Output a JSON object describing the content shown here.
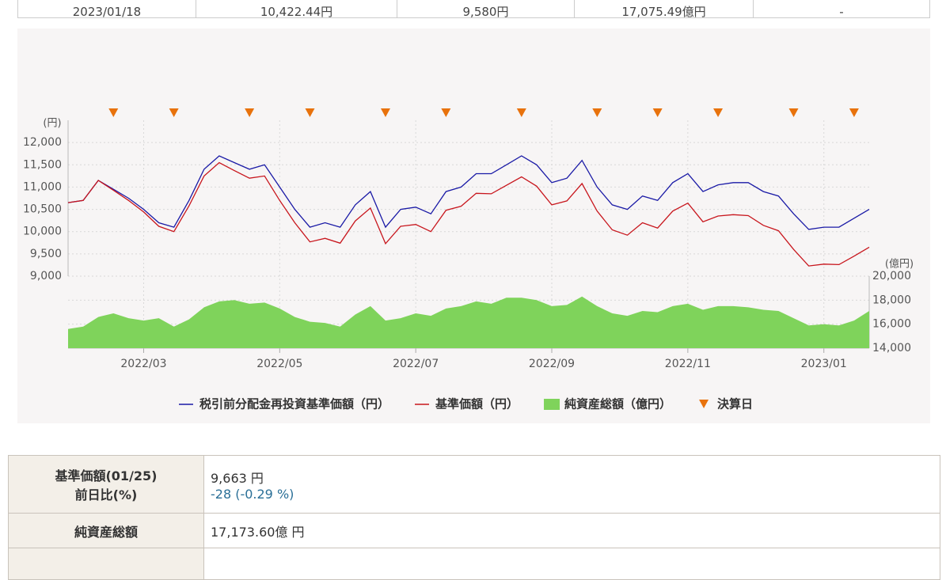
{
  "top_table": {
    "rows": [
      [
        "2023/01/18",
        "10,422.44円",
        "9,580円",
        "17,075.49億円",
        "-"
      ]
    ]
  },
  "chart_data": {
    "type": "line",
    "y_unit": "(円)",
    "y2_unit": "(億円)",
    "categories": [
      null,
      null,
      null,
      null,
      null,
      "2022/03",
      null,
      null,
      null,
      null,
      null,
      null,
      null,
      null,
      "2022/05",
      null,
      null,
      null,
      null,
      null,
      null,
      null,
      null,
      "2022/07",
      null,
      null,
      null,
      null,
      null,
      null,
      null,
      null,
      "2022/09",
      null,
      null,
      null,
      null,
      null,
      null,
      null,
      null,
      "2022/11",
      null,
      null,
      null,
      null,
      null,
      null,
      null,
      null,
      "2023/01",
      null,
      null,
      null
    ],
    "series": [
      {
        "name": "税引前分配金再投資基準価額（円）",
        "type": "line",
        "color": "#1a1aa6",
        "values": [
          10650,
          10700,
          11150,
          10950,
          10750,
          10500,
          10200,
          10100,
          10700,
          11400,
          11700,
          11550,
          11400,
          11500,
          11000,
          10500,
          10100,
          10200,
          10100,
          10600,
          10900,
          10100,
          10500,
          10550,
          10400,
          10900,
          11000,
          11300,
          11300,
          11500,
          11700,
          11500,
          11100,
          11200,
          11600,
          11000,
          10600,
          10500,
          10800,
          10700,
          11100,
          11300,
          10900,
          11050,
          11100,
          11100,
          10900,
          10800,
          10400,
          10050,
          10100,
          10100,
          10300,
          10500
        ]
      },
      {
        "name": "基準価額（円）",
        "type": "line",
        "color": "#c8161d",
        "values": [
          10650,
          10700,
          11150,
          10930,
          10700,
          10440,
          10120,
          10000,
          10580,
          11250,
          11550,
          11370,
          11200,
          11250,
          10700,
          10200,
          9770,
          9850,
          9740,
          10240,
          10530,
          9730,
          10120,
          10160,
          10000,
          10480,
          10570,
          10860,
          10850,
          11040,
          11230,
          11020,
          10600,
          10690,
          11080,
          10460,
          10040,
          9920,
          10200,
          10080,
          10460,
          10640,
          10220,
          10350,
          10380,
          10360,
          10140,
          10020,
          9600,
          9230,
          9270,
          9260,
          9450,
          9650
        ]
      },
      {
        "name": "純資産総額（億円）",
        "type": "area",
        "axis": "y2",
        "color": "#7fd35b",
        "values": [
          15600,
          15800,
          16600,
          16900,
          16500,
          16300,
          16500,
          15800,
          16400,
          17400,
          17900,
          18000,
          17700,
          17800,
          17300,
          16600,
          16200,
          16100,
          15800,
          16800,
          17500,
          16300,
          16500,
          16900,
          16700,
          17300,
          17500,
          17900,
          17700,
          18200,
          18200,
          18000,
          17500,
          17600,
          18300,
          17500,
          16900,
          16700,
          17100,
          17000,
          17500,
          17700,
          17200,
          17500,
          17500,
          17400,
          17200,
          17100,
          16500,
          15900,
          16000,
          15900,
          16300,
          17100
        ]
      }
    ],
    "marker_series": {
      "name": "決算日",
      "color": "#e8720c",
      "indices": [
        3,
        7,
        12,
        16,
        21,
        25,
        30,
        35,
        39,
        43,
        48,
        52
      ]
    },
    "ylim": [
      9000,
      12500
    ],
    "yticks": [
      {
        "value": 9000,
        "label": "9,000"
      },
      {
        "value": 9500,
        "label": "9,500"
      },
      {
        "value": 10000,
        "label": "10,000"
      },
      {
        "value": 10500,
        "label": "10,500"
      },
      {
        "value": 11000,
        "label": "11,000"
      },
      {
        "value": 11500,
        "label": "11,500"
      },
      {
        "value": 12000,
        "label": "12,000"
      }
    ],
    "y2lim": [
      14000,
      20000
    ],
    "y2ticks": [
      {
        "value": 14000,
        "label": "14,000"
      },
      {
        "value": 16000,
        "label": "16,000"
      },
      {
        "value": 18000,
        "label": "18,000"
      },
      {
        "value": 20000,
        "label": "20,000"
      }
    ],
    "grid": true,
    "legend": "bottom"
  },
  "summary_table": {
    "rows": [
      {
        "label": [
          "基準価額(01/25)",
          "前日比(%)"
        ],
        "value": [
          "9,663 円",
          "-28 (-0.29 %)"
        ]
      },
      {
        "label": [
          "純資産総額"
        ],
        "value": [
          "17,173.60億 円"
        ]
      }
    ]
  }
}
